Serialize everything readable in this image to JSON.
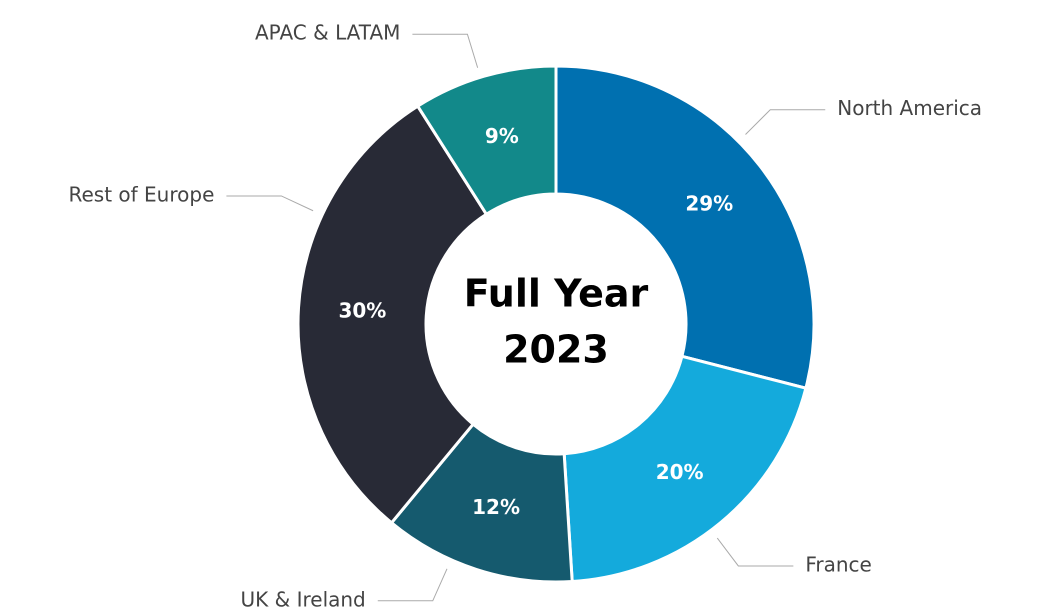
{
  "chart_data": {
    "type": "donut",
    "center_label": [
      "Full Year",
      "2023"
    ],
    "categories": [
      "North America",
      "France",
      "UK & Ireland",
      "Rest of Europe",
      "APAC & LATAM"
    ],
    "values": [
      29,
      20,
      12,
      30,
      9
    ],
    "value_labels": [
      "29%",
      "20%",
      "12%",
      "30%",
      "9%"
    ],
    "colors": [
      "#0070b0",
      "#14aadc",
      "#155a6e",
      "#282a36",
      "#12898a"
    ]
  }
}
